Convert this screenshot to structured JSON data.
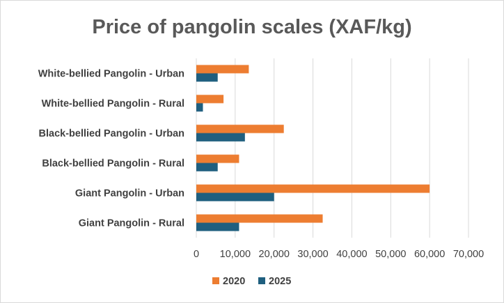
{
  "chart_data": {
    "type": "bar",
    "orientation": "horizontal",
    "title": "Price of pangolin scales (XAF/kg)",
    "categories": [
      "Giant Pangolin - Rural",
      "Giant Pangolin - Urban",
      "Black-bellied Pangolin - Rural",
      "Black-bellied Pangolin - Urban",
      "White-bellied Pangolin - Rural",
      "White-bellied Pangolin - Urban"
    ],
    "series": [
      {
        "name": "2020",
        "color": "#ed7d31",
        "values": [
          32500,
          60000,
          11000,
          22500,
          7000,
          13500
        ]
      },
      {
        "name": "2025",
        "color": "#1f5f7f",
        "values": [
          11000,
          20000,
          5500,
          12500,
          1700,
          5500
        ]
      }
    ],
    "xlim": [
      0,
      70000
    ],
    "xticks": [
      0,
      10000,
      20000,
      30000,
      40000,
      50000,
      60000,
      70000
    ],
    "xtick_labels": [
      "0",
      "10,000",
      "20,000",
      "30,000",
      "40,000",
      "50,000",
      "60,000",
      "70,000"
    ],
    "grid": "vertical",
    "legend": "bottom"
  }
}
